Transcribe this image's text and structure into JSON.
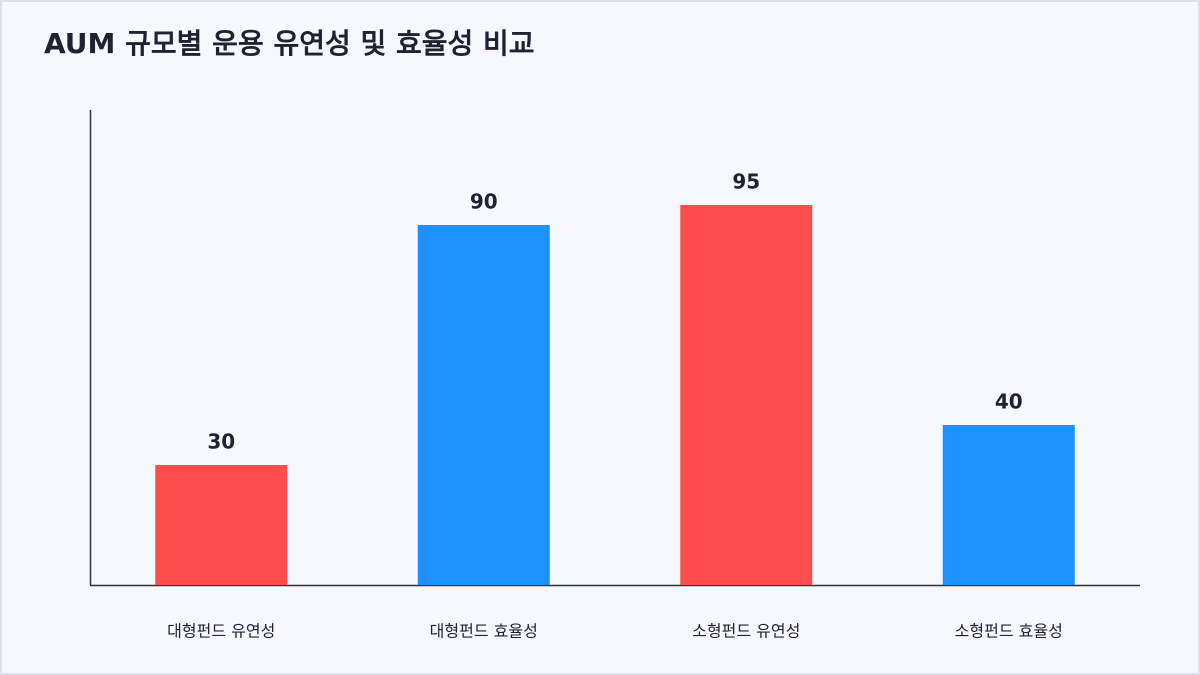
{
  "chart_data": {
    "type": "bar",
    "title": "AUM 규모별 운용 유연성 및 효율성 비교",
    "categories": [
      "대형펀드 유연성",
      "대형펀드 효율성",
      "소형펀드 유연성",
      "소형펀드 효율성"
    ],
    "values": [
      30,
      90,
      95,
      40
    ],
    "colors": [
      "#ff4d4d",
      "#1e90ff",
      "#ff4d4d",
      "#1e90ff"
    ],
    "ylim": [
      0,
      118.75
    ]
  }
}
